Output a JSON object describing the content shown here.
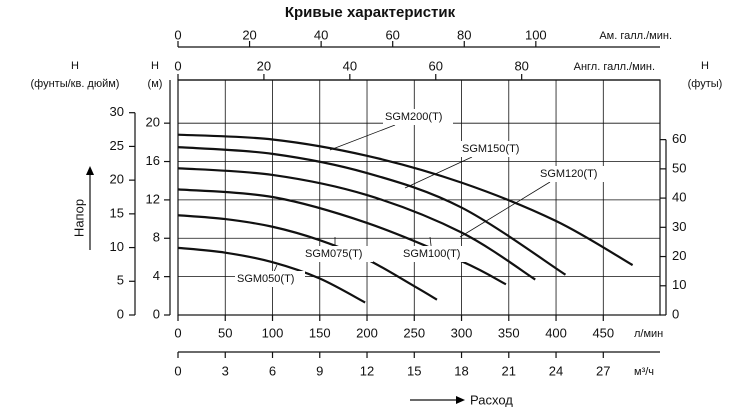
{
  "chart_data": {
    "type": "line",
    "title": "Кривые характеристик",
    "x_label": "л/мин",
    "xlim": [
      0,
      510
    ],
    "xticks": [
      0,
      50,
      100,
      150,
      200,
      250,
      300,
      350,
      400,
      450
    ],
    "y_label_top": "H",
    "y_label": "(м)",
    "ylim": [
      0,
      24.5
    ],
    "yticks": [
      0,
      4,
      8,
      12,
      16,
      20
    ],
    "grid": true,
    "axes": {
      "psi": {
        "label_top": "H",
        "label": "(фунты/кв. дюйм)",
        "lim": [
          0,
          34.85
        ],
        "ticks": [
          0,
          5,
          10,
          15,
          20,
          25,
          30
        ]
      },
      "feet": {
        "label_top": "H",
        "label": "(футы)",
        "lim": [
          0,
          80.4
        ],
        "ticks": [
          0,
          10,
          20,
          30,
          40,
          50,
          60
        ]
      },
      "us_gpm": {
        "label": "Ам. галл./мин.",
        "lim": [
          0,
          134.7
        ],
        "ticks": [
          0,
          20,
          40,
          60,
          80,
          100
        ]
      },
      "uk_gpm": {
        "label": "Англ. галл./мин.",
        "lim": [
          0,
          112.2
        ],
        "ticks": [
          0,
          20,
          40,
          60,
          80
        ]
      },
      "m3h": {
        "label": "м³/ч",
        "lim": [
          0,
          30.6
        ],
        "ticks": [
          0,
          3,
          6,
          9,
          12,
          15,
          18,
          21,
          24,
          27
        ]
      }
    },
    "y_axis_title": "Напор",
    "x_axis_title": "Расход",
    "series": [
      {
        "name": "SGM050(T)",
        "color": "#111111",
        "x": [
          0,
          50,
          100,
          150,
          198
        ],
        "values": [
          7.0,
          6.5,
          5.5,
          3.8,
          1.3
        ]
      },
      {
        "name": "SGM075(T)",
        "color": "#111111",
        "x": [
          0,
          50,
          100,
          150,
          200,
          250,
          274
        ],
        "values": [
          10.4,
          10.0,
          9.2,
          7.8,
          5.8,
          3.0,
          1.6
        ]
      },
      {
        "name": "SGM100(T)",
        "color": "#111111",
        "x": [
          0,
          100,
          200,
          300,
          347
        ],
        "values": [
          13.1,
          12.3,
          9.6,
          5.6,
          3.2
        ]
      },
      {
        "name": "SGM120(T)",
        "color": "#111111",
        "x": [
          0,
          100,
          200,
          300,
          378
        ],
        "values": [
          15.3,
          14.6,
          12.5,
          8.6,
          3.7
        ]
      },
      {
        "name": "SGM150(T)",
        "color": "#111111",
        "x": [
          0,
          100,
          200,
          300,
          410
        ],
        "values": [
          17.5,
          16.8,
          14.8,
          11.2,
          4.2
        ]
      },
      {
        "name": "SGM200(T)",
        "color": "#111111",
        "x": [
          0,
          100,
          200,
          300,
          400,
          481
        ],
        "values": [
          18.8,
          18.3,
          16.6,
          13.8,
          9.8,
          5.2
        ]
      }
    ]
  }
}
